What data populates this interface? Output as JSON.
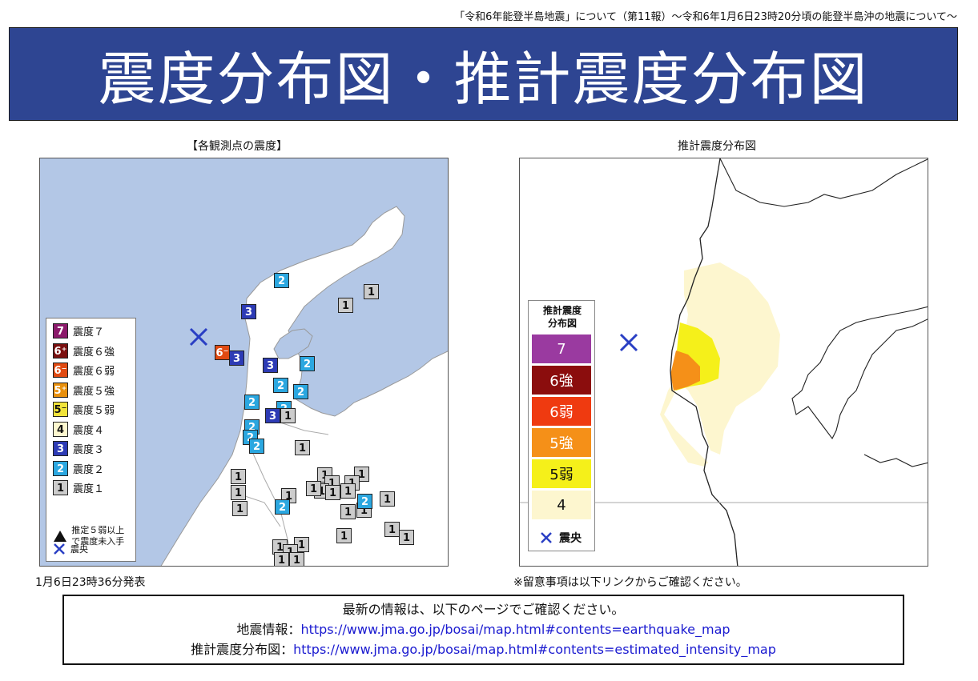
{
  "header_note": "「令和6年能登半島地震」について（第11報）～令和6年1月6日23時20分頃の能登半島沖の地震について～",
  "title": "震度分布図・推計震度分布図",
  "left_panel": {
    "caption": "【各観測点の震度】",
    "issued": "1月6日23時36分発表",
    "colors": {
      "sea": "#b3c7e6",
      "land": "#ffffff"
    },
    "legend": [
      {
        "label": "震度７",
        "badge": "7",
        "color": "#8b1a6b"
      },
      {
        "label": "震度６強",
        "badge": "6+",
        "color": "#7a1010"
      },
      {
        "label": "震度６弱",
        "badge": "6-",
        "color": "#e04a12"
      },
      {
        "label": "震度５強",
        "badge": "5+",
        "color": "#e8900d"
      },
      {
        "label": "震度５弱",
        "badge": "5-",
        "color": "#f1e43a"
      },
      {
        "label": "震度４",
        "badge": "4",
        "color": "#fdf7cf"
      },
      {
        "label": "震度３",
        "badge": "3",
        "color": "#2d3bb5"
      },
      {
        "label": "震度２",
        "badge": "2",
        "color": "#2ba7e0"
      },
      {
        "label": "震度１",
        "badge": "1",
        "color": "#cccccc"
      }
    ],
    "legend_note": "推定５弱以上で震度未入手",
    "epicenter_label": "震央",
    "stations": [
      {
        "v": "2"
      },
      {
        "v": "1"
      },
      {
        "v": "1"
      },
      {
        "v": "3"
      },
      {
        "v": "6-"
      },
      {
        "v": "3"
      },
      {
        "v": "3"
      },
      {
        "v": "2"
      },
      {
        "v": "2"
      },
      {
        "v": "2"
      },
      {
        "v": "2"
      },
      {
        "v": "2"
      },
      {
        "v": "3"
      },
      {
        "v": "1"
      },
      {
        "v": "2"
      },
      {
        "v": "2"
      },
      {
        "v": "2"
      },
      {
        "v": "1"
      },
      {
        "v": "1"
      },
      {
        "v": "1"
      },
      {
        "v": "1"
      },
      {
        "v": "1"
      },
      {
        "v": "1"
      },
      {
        "v": "1"
      },
      {
        "v": "1"
      },
      {
        "v": "1"
      },
      {
        "v": "1"
      },
      {
        "v": "1"
      },
      {
        "v": "1"
      },
      {
        "v": "2"
      },
      {
        "v": "1"
      },
      {
        "v": "1"
      },
      {
        "v": "2"
      },
      {
        "v": "1"
      },
      {
        "v": "1"
      },
      {
        "v": "1"
      },
      {
        "v": "1"
      },
      {
        "v": "1"
      },
      {
        "v": "1"
      },
      {
        "v": "1"
      },
      {
        "v": "1"
      },
      {
        "v": "1"
      },
      {
        "v": "1"
      }
    ]
  },
  "right_panel": {
    "caption": "推計震度分布図",
    "legend_title": "推計震度分布図",
    "legend": [
      {
        "label": "7",
        "color": "#9a3aa0",
        "text_color": "#ffffff"
      },
      {
        "label": "6強",
        "color": "#8b0d0d",
        "text_color": "#ffffff"
      },
      {
        "label": "6弱",
        "color": "#ef3a10",
        "text_color": "#ffffff"
      },
      {
        "label": "5強",
        "color": "#f59018",
        "text_color": "#ffffff"
      },
      {
        "label": "5弱",
        "color": "#f5f01a",
        "text_color": "#111111"
      },
      {
        "label": "4",
        "color": "#fdf6cf",
        "text_color": "#111111"
      }
    ],
    "epicenter_label": "震央",
    "footnote": "※留意事項は以下リンクからご確認ください。"
  },
  "info": {
    "line1": "最新の情報は、以下のページでご確認ください。",
    "eq_label": "地震情報：",
    "eq_url": "https://www.jma.go.jp/bosai/map.html#contents=earthquake_map",
    "est_label": "推計震度分布図：",
    "est_url": "https://www.jma.go.jp/bosai/map.html#contents=estimated_intensity_map"
  }
}
